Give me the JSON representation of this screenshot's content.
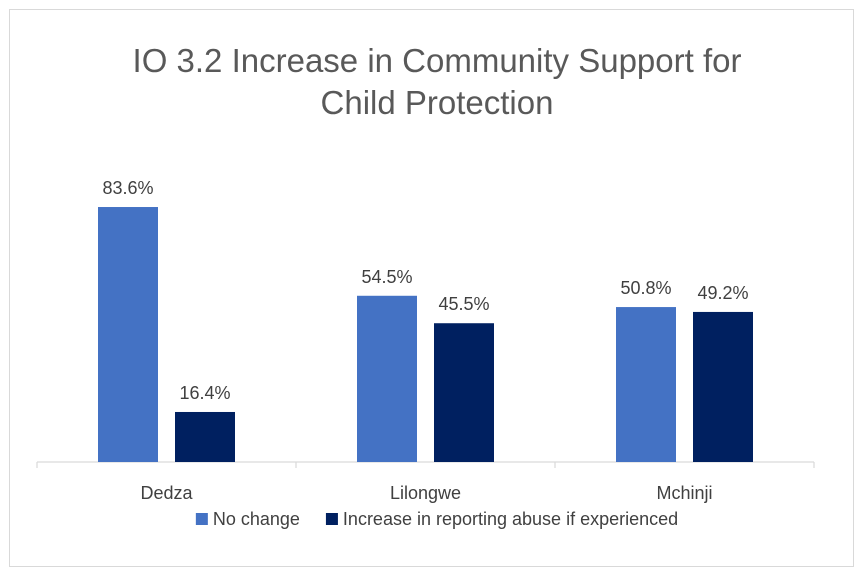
{
  "chart_data": {
    "type": "bar",
    "title": "IO 3.2 Increase in Community Support for Child Protection",
    "title_lines": [
      "IO 3.2 Increase in Community Support for",
      "Child Protection"
    ],
    "categories": [
      "Dedza",
      "Lilongwe",
      "Mchinji"
    ],
    "series": [
      {
        "name": "No change",
        "values": [
          83.6,
          54.5,
          50.8
        ],
        "labels": [
          "83.6%",
          "54.5%",
          "50.8%"
        ],
        "color": "#4472c4"
      },
      {
        "name": "Increase in reporting abuse if experienced",
        "values": [
          16.4,
          45.5,
          49.2
        ],
        "labels": [
          "16.4%",
          "45.5%",
          "49.2%"
        ],
        "color": "#002060"
      }
    ],
    "ylim": [
      0,
      100
    ],
    "grid": false,
    "legend_position": "bottom",
    "xlabel": "",
    "ylabel": ""
  }
}
